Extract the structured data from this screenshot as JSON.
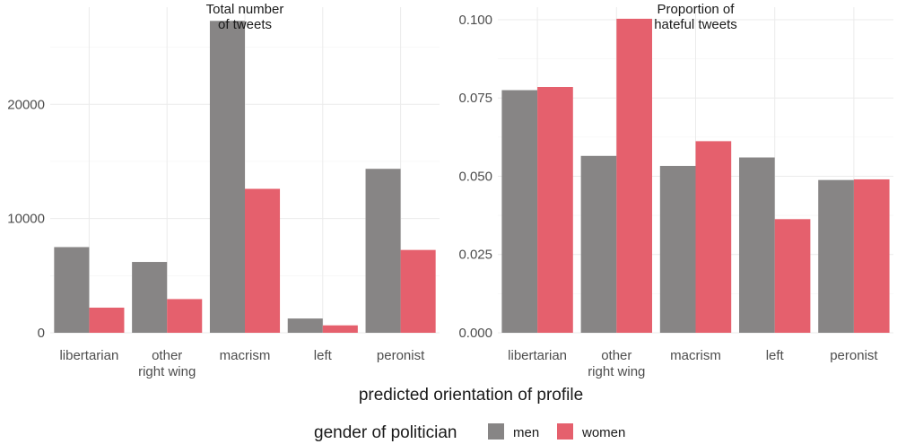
{
  "chart_data": [
    {
      "type": "bar",
      "title": "Total number\nof tweets",
      "categories": [
        "libertarian",
        "other\nright wing",
        "macrism",
        "left",
        "peronist"
      ],
      "series": [
        {
          "name": "men",
          "values": [
            7500,
            6200,
            27300,
            1250,
            14350
          ]
        },
        {
          "name": "women",
          "values": [
            2200,
            2950,
            12600,
            650,
            7250
          ]
        }
      ],
      "ylim": [
        0,
        28500
      ],
      "yticks": [
        0,
        10000,
        20000
      ],
      "ytick_labels": [
        "0",
        "10000",
        "20000"
      ],
      "xlabel": "predicted orientation of profile",
      "ylabel": ""
    },
    {
      "type": "bar",
      "title": "Proportion of\nhateful tweets",
      "categories": [
        "libertarian",
        "other\nright wing",
        "macrism",
        "left",
        "peronist"
      ],
      "series": [
        {
          "name": "men",
          "values": [
            0.0775,
            0.0565,
            0.0533,
            0.056,
            0.0488
          ]
        },
        {
          "name": "women",
          "values": [
            0.0785,
            0.1003,
            0.0612,
            0.0363,
            0.049
          ]
        }
      ],
      "ylim": [
        0,
        0.104
      ],
      "yticks": [
        0,
        0.025,
        0.05,
        0.075,
        0.1
      ],
      "ytick_labels": [
        "0.000",
        "0.025",
        "0.050",
        "0.075",
        "0.100"
      ],
      "xlabel": "predicted orientation of profile",
      "ylabel": ""
    }
  ],
  "xlabel": "predicted orientation of profile",
  "legend": {
    "title": "gender of politician",
    "position": "bottom",
    "items": [
      {
        "label": "men",
        "color": "#878585"
      },
      {
        "label": "women",
        "color": "#E5606D"
      }
    ]
  },
  "colors": {
    "men": "#878585",
    "women": "#E5606D"
  },
  "grid": true
}
